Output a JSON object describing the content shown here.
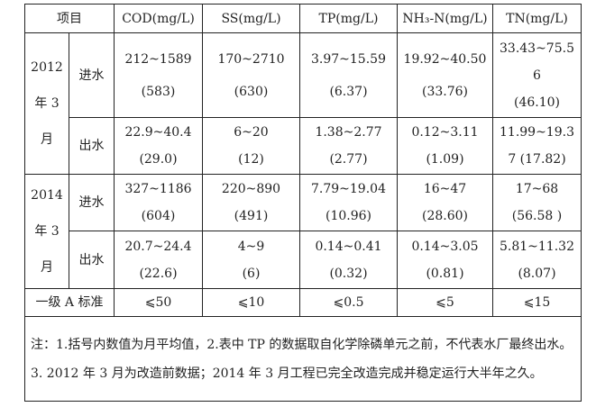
{
  "header": {
    "item": "项目",
    "cols": [
      "COD(mg/L)",
      "SS(mg/L)",
      "TP(mg/L)",
      "NH₃-N(mg/L)",
      "TN(mg/L)"
    ]
  },
  "groups": [
    {
      "period": [
        "2012",
        "年 3",
        "月"
      ],
      "rows": [
        {
          "label": "进水",
          "cells": [
            [
              "212~1589",
              "(583)"
            ],
            [
              "170~2710",
              "(630)"
            ],
            [
              "3.97~15.59",
              "(6.37)"
            ],
            [
              "19.92~40.50",
              "(33.76)"
            ],
            [
              "33.43~75.5",
              "6",
              "(46.10)"
            ]
          ]
        },
        {
          "label": "出水",
          "cells": [
            [
              "22.9~40.4",
              "(29.0)"
            ],
            [
              "6~20",
              "(12)"
            ],
            [
              "1.38~2.77",
              "(2.77)"
            ],
            [
              "0.12~3.11",
              "(1.09)"
            ],
            [
              "11.99~19.3",
              "7 (17.82)"
            ]
          ]
        }
      ]
    },
    {
      "period": [
        "2014",
        "年 3",
        "月"
      ],
      "rows": [
        {
          "label": "进水",
          "cells": [
            [
              "327~1186",
              "(604)"
            ],
            [
              "220~890",
              "(491)"
            ],
            [
              "7.79~19.04",
              "(10.96)"
            ],
            [
              "16~47",
              "(28.60)"
            ],
            [
              "17~68",
              "(56.58 )"
            ]
          ]
        },
        {
          "label": "出水",
          "cells": [
            [
              "20.7~24.4",
              "(22.6)"
            ],
            [
              "4~9",
              "(6)"
            ],
            [
              "0.14~0.41",
              "(0.32)"
            ],
            [
              "0.14~3.05",
              "(0.81)"
            ],
            [
              "5.81~11.32",
              "(8.07)"
            ]
          ]
        }
      ]
    }
  ],
  "standard": {
    "label": "一级 A 标准",
    "values": [
      "⩽50",
      "⩽10",
      "⩽0.5",
      "⩽5",
      "⩽15"
    ]
  },
  "note": "注：1.括号内数值为月平均值，2.表中 TP 的数据取自化学除磷单元之前，不代表水厂最终出水。3. 2012 年 3 月为改造前数据；2014 年 3 月工程已完全改造完成并稳定运行大半年之久。"
}
